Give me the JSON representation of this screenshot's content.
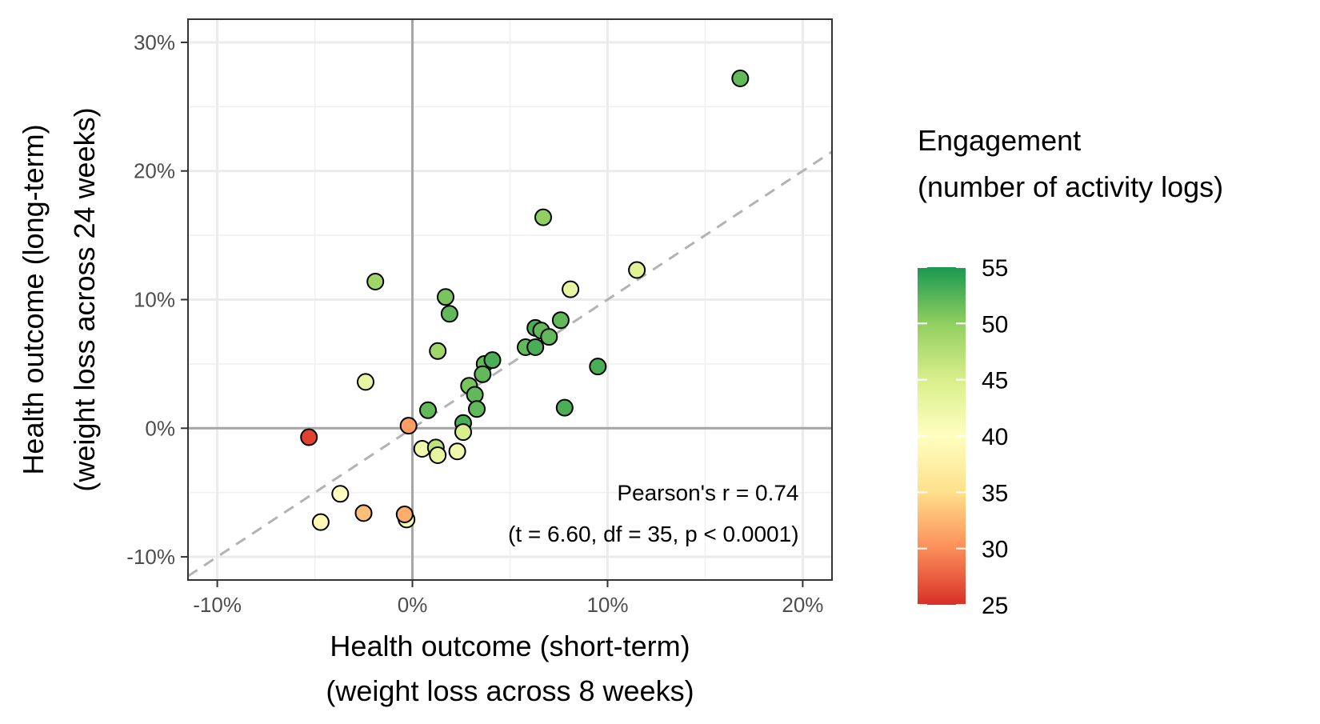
{
  "chart_data": {
    "type": "scatter",
    "xlabel": [
      "Health outcome (short-term)",
      "(weight loss across 8 weeks)"
    ],
    "ylabel": [
      "Health outcome (long-term)",
      "(weight loss across 24 weeks)"
    ],
    "xlim": [
      -11.5,
      21.5
    ],
    "ylim": [
      -11.8,
      31.8
    ],
    "x_ticks": [
      -10,
      0,
      10,
      20
    ],
    "y_ticks": [
      -10,
      0,
      10,
      20,
      30
    ],
    "x_tick_labels": [
      "-10%",
      "0%",
      "10%",
      "20%"
    ],
    "y_tick_labels": [
      "-10%",
      "0%",
      "10%",
      "20%",
      "30%"
    ],
    "grid": true,
    "reference_lines": {
      "x": 0,
      "y": 0,
      "diagonal": "y = x (dashed)"
    },
    "annotation": [
      "Pearson's r = 0.74",
      "(t = 6.60, df = 35, p < 0.0001)"
    ],
    "color_legend": {
      "title": [
        "Engagement",
        "(number of activity logs)"
      ],
      "min": 25,
      "max": 55,
      "ticks": [
        25,
        30,
        35,
        40,
        45,
        50,
        55
      ],
      "tick_labels": [
        "25",
        "30",
        "35",
        "40",
        "45",
        "50",
        "55"
      ],
      "colors": [
        "#d73027",
        "#fc8d59",
        "#fee08b",
        "#ffffbf",
        "#d9ef8b",
        "#91cf60",
        "#1a9850"
      ]
    },
    "points": [
      {
        "x": 16.8,
        "y": 27.2,
        "engagement": 52
      },
      {
        "x": 6.7,
        "y": 16.4,
        "engagement": 50
      },
      {
        "x": -1.9,
        "y": 11.4,
        "engagement": 49
      },
      {
        "x": 11.5,
        "y": 12.3,
        "engagement": 44
      },
      {
        "x": 8.1,
        "y": 10.8,
        "engagement": 43
      },
      {
        "x": 1.7,
        "y": 10.2,
        "engagement": 51
      },
      {
        "x": 1.9,
        "y": 8.9,
        "engagement": 52
      },
      {
        "x": 7.6,
        "y": 8.4,
        "engagement": 52
      },
      {
        "x": 6.3,
        "y": 7.8,
        "engagement": 53
      },
      {
        "x": 6.6,
        "y": 7.6,
        "engagement": 52
      },
      {
        "x": 7.0,
        "y": 7.1,
        "engagement": 52
      },
      {
        "x": 5.8,
        "y": 6.3,
        "engagement": 52
      },
      {
        "x": 6.3,
        "y": 6.3,
        "engagement": 53
      },
      {
        "x": 1.3,
        "y": 6.0,
        "engagement": 49
      },
      {
        "x": 3.7,
        "y": 5.0,
        "engagement": 52
      },
      {
        "x": 4.1,
        "y": 5.3,
        "engagement": 53
      },
      {
        "x": 3.6,
        "y": 4.2,
        "engagement": 52
      },
      {
        "x": 9.5,
        "y": 4.8,
        "engagement": 53
      },
      {
        "x": -2.4,
        "y": 3.6,
        "engagement": 43
      },
      {
        "x": 2.9,
        "y": 3.3,
        "engagement": 51
      },
      {
        "x": 3.2,
        "y": 2.6,
        "engagement": 52
      },
      {
        "x": 7.8,
        "y": 1.6,
        "engagement": 53
      },
      {
        "x": 3.3,
        "y": 1.5,
        "engagement": 52
      },
      {
        "x": 0.8,
        "y": 1.4,
        "engagement": 52
      },
      {
        "x": 2.6,
        "y": 0.4,
        "engagement": 53
      },
      {
        "x": -0.2,
        "y": 0.2,
        "engagement": 31
      },
      {
        "x": 2.6,
        "y": -0.3,
        "engagement": 45
      },
      {
        "x": -5.3,
        "y": -0.7,
        "engagement": 26
      },
      {
        "x": 0.5,
        "y": -1.6,
        "engagement": 42
      },
      {
        "x": 1.2,
        "y": -1.5,
        "engagement": 47
      },
      {
        "x": 1.3,
        "y": -2.1,
        "engagement": 43
      },
      {
        "x": 2.3,
        "y": -1.8,
        "engagement": 42
      },
      {
        "x": -3.7,
        "y": -5.1,
        "engagement": 40
      },
      {
        "x": -2.5,
        "y": -6.6,
        "engagement": 33
      },
      {
        "x": -4.7,
        "y": -7.3,
        "engagement": 39
      },
      {
        "x": -0.3,
        "y": -7.1,
        "engagement": 41
      },
      {
        "x": -0.4,
        "y": -6.7,
        "engagement": 32
      }
    ]
  }
}
